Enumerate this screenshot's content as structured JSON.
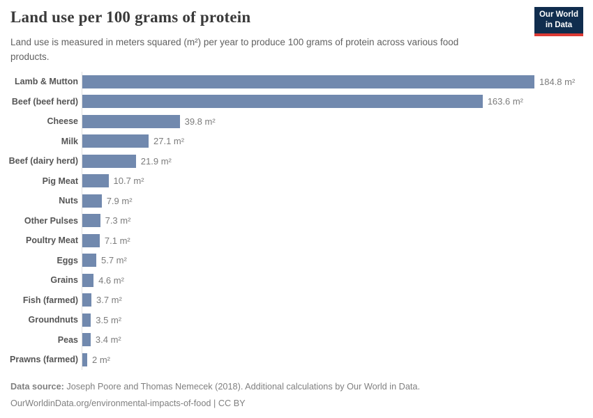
{
  "header": {
    "logo_line1": "Our World",
    "logo_line2": "in Data",
    "logo_bg_color": "#102d4e",
    "logo_accent_color": "#dc3a34"
  },
  "chart_data": {
    "type": "bar",
    "orientation": "horizontal",
    "title": "Land use per 100 grams of protein",
    "subtitle": "Land use is measured in meters squared (m²) per year to produce 100 grams of protein across various food products.",
    "categories": [
      "Lamb & Mutton",
      "Beef (beef herd)",
      "Cheese",
      "Milk",
      "Beef (dairy herd)",
      "Pig Meat",
      "Nuts",
      "Other Pulses",
      "Poultry Meat",
      "Eggs",
      "Grains",
      "Fish (farmed)",
      "Groundnuts",
      "Peas",
      "Prawns (farmed)"
    ],
    "values": [
      184.8,
      163.6,
      39.8,
      27.1,
      21.9,
      10.7,
      7.9,
      7.3,
      7.1,
      5.7,
      4.6,
      3.7,
      3.5,
      3.4,
      2
    ],
    "value_labels": [
      "184.8 m²",
      "163.6 m²",
      "39.8 m²",
      "27.1 m²",
      "21.9 m²",
      "10.7 m²",
      "7.9 m²",
      "7.3 m²",
      "7.1 m²",
      "5.7 m²",
      "4.6 m²",
      "3.7 m²",
      "3.5 m²",
      "3.4 m²",
      "2 m²"
    ],
    "unit": "m² per year",
    "xlabel": "",
    "ylabel": "",
    "xlim": [
      0,
      185
    ],
    "grid": false,
    "legend": false,
    "bar_color": "#7189ae",
    "axis_line_color": "#dddddd",
    "category_label_color": "#555555",
    "value_label_color": "#7c7c7c"
  },
  "footer": {
    "source_label": "Data source:",
    "source_text": "Joseph Poore and Thomas Nemecek (2018). Additional calculations by Our World in Data.",
    "url": "OurWorldinData.org/environmental-impacts-of-food",
    "license_separator": " | ",
    "license": "CC BY"
  }
}
